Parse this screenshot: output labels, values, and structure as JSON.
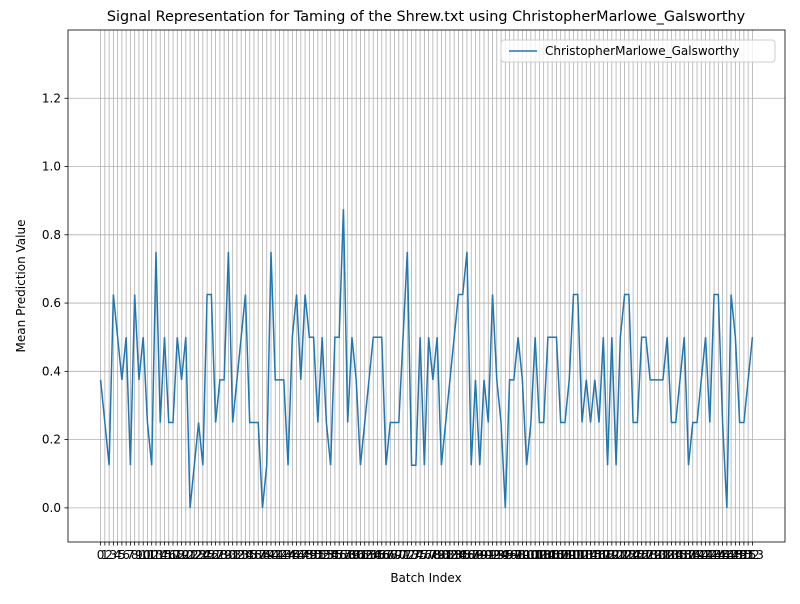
{
  "chart_data": {
    "type": "line",
    "title": "Signal Representation for Taming of the Shrew.txt using ChristopherMarlowe_Galsworthy",
    "x_label": "Batch Index",
    "y_label": "Mean Prediction Value",
    "x": [
      0,
      1,
      2,
      3,
      4,
      5,
      6,
      7,
      8,
      9,
      10,
      11,
      12,
      13,
      14,
      15,
      16,
      17,
      18,
      19,
      20,
      21,
      22,
      23,
      24,
      25,
      26,
      27,
      28,
      29,
      30,
      31,
      32,
      33,
      34,
      35,
      36,
      37,
      38,
      39,
      40,
      41,
      42,
      43,
      44,
      45,
      46,
      47,
      48,
      49,
      50,
      51,
      52,
      53,
      54,
      55,
      56,
      57,
      58,
      59,
      60,
      61,
      62,
      63,
      64,
      65,
      66,
      67,
      68,
      69,
      70,
      71,
      72,
      73,
      74,
      75,
      76,
      77,
      78,
      79,
      80,
      81,
      82,
      83,
      84,
      85,
      86,
      87,
      88,
      89,
      90,
      91,
      92,
      93,
      94,
      95,
      96,
      97,
      98,
      99,
      100,
      101,
      102,
      103,
      104,
      105,
      106,
      107,
      108,
      109,
      110,
      111,
      112,
      113,
      114,
      115,
      116,
      117,
      118,
      119,
      120,
      121,
      122,
      123,
      124,
      125,
      126,
      127,
      128,
      129,
      130,
      131,
      132,
      133,
      134,
      135,
      136,
      137,
      138,
      139,
      140,
      141,
      142,
      143,
      144,
      145,
      146,
      147,
      148,
      149,
      150,
      151,
      152,
      153
    ],
    "series": [
      {
        "name": "ChristopherMarlowe_Galsworthy",
        "color": "#1f77b4",
        "values": [
          0.375,
          0.25,
          0.125,
          0.625,
          0.5,
          0.375,
          0.5,
          0.125,
          0.625,
          0.375,
          0.5,
          0.25,
          0.125,
          0.75,
          0.25,
          0.5,
          0.25,
          0.25,
          0.5,
          0.375,
          0.5,
          0.0,
          0.125,
          0.25,
          0.125,
          0.625,
          0.625,
          0.25,
          0.375,
          0.375,
          0.75,
          0.25,
          0.375,
          0.5,
          0.625,
          0.25,
          0.25,
          0.25,
          0.0,
          0.125,
          0.75,
          0.375,
          0.375,
          0.375,
          0.125,
          0.5,
          0.625,
          0.375,
          0.625,
          0.5,
          0.5,
          0.25,
          0.5,
          0.25,
          0.125,
          0.5,
          0.5,
          0.875,
          0.25,
          0.5,
          0.375,
          0.125,
          0.25,
          0.375,
          0.5,
          0.5,
          0.5,
          0.125,
          0.25,
          0.25,
          0.25,
          0.5,
          0.75,
          0.125,
          0.125,
          0.5,
          0.125,
          0.5,
          0.375,
          0.5,
          0.125,
          0.25,
          0.375,
          0.5,
          0.625,
          0.625,
          0.75,
          0.125,
          0.375,
          0.125,
          0.375,
          0.25,
          0.625,
          0.375,
          0.25,
          0.0,
          0.375,
          0.375,
          0.5,
          0.375,
          0.125,
          0.25,
          0.5,
          0.25,
          0.25,
          0.5,
          0.5,
          0.5,
          0.25,
          0.25,
          0.375,
          0.625,
          0.625,
          0.25,
          0.375,
          0.25,
          0.375,
          0.25,
          0.5,
          0.125,
          0.5,
          0.125,
          0.5,
          0.625,
          0.625,
          0.25,
          0.25,
          0.5,
          0.5,
          0.375,
          0.375,
          0.375,
          0.375,
          0.5,
          0.25,
          0.25,
          0.375,
          0.5,
          0.125,
          0.25,
          0.25,
          0.375,
          0.5,
          0.25,
          0.625,
          0.625,
          0.25,
          0.0,
          0.625,
          0.5,
          0.25,
          0.25,
          0.375,
          0.5
        ]
      }
    ],
    "xlim": [
      -7.65,
      160.65
    ],
    "xticks": [
      0,
      1,
      2,
      3,
      4,
      5,
      6,
      7,
      8,
      9,
      10,
      11,
      12,
      13,
      14,
      15,
      16,
      17,
      18,
      19,
      20,
      21,
      22,
      23,
      24,
      25,
      26,
      27,
      28,
      29,
      30,
      31,
      32,
      33,
      34,
      35,
      36,
      37,
      38,
      39,
      40,
      41,
      42,
      43,
      44,
      45,
      46,
      47,
      48,
      49,
      50,
      51,
      52,
      53,
      54,
      55,
      56,
      57,
      58,
      59,
      60,
      61,
      62,
      63,
      64,
      65,
      66,
      67,
      68,
      69,
      70,
      71,
      72,
      73,
      74,
      75,
      76,
      77,
      78,
      79,
      80,
      81,
      82,
      83,
      84,
      85,
      86,
      87,
      88,
      89,
      90,
      91,
      92,
      93,
      94,
      95,
      96,
      97,
      98,
      99,
      100,
      101,
      102,
      103,
      104,
      105,
      106,
      107,
      108,
      109,
      110,
      111,
      112,
      113,
      114,
      115,
      116,
      117,
      118,
      119,
      120,
      121,
      122,
      123,
      124,
      125,
      126,
      127,
      128,
      129,
      130,
      131,
      132,
      133,
      134,
      135,
      136,
      137,
      138,
      139,
      140,
      141,
      142,
      143,
      144,
      145,
      146,
      147,
      148,
      149,
      150,
      151,
      152,
      153
    ],
    "ylim": [
      -0.1,
      1.4
    ],
    "yticks": [
      {
        "value": 0,
        "label": "0.0"
      },
      0.2,
      0.4,
      0.6,
      0.8,
      {
        "value": 1,
        "label": "1.0"
      },
      1.2
    ],
    "grid": true,
    "legend": "upper-right"
  }
}
